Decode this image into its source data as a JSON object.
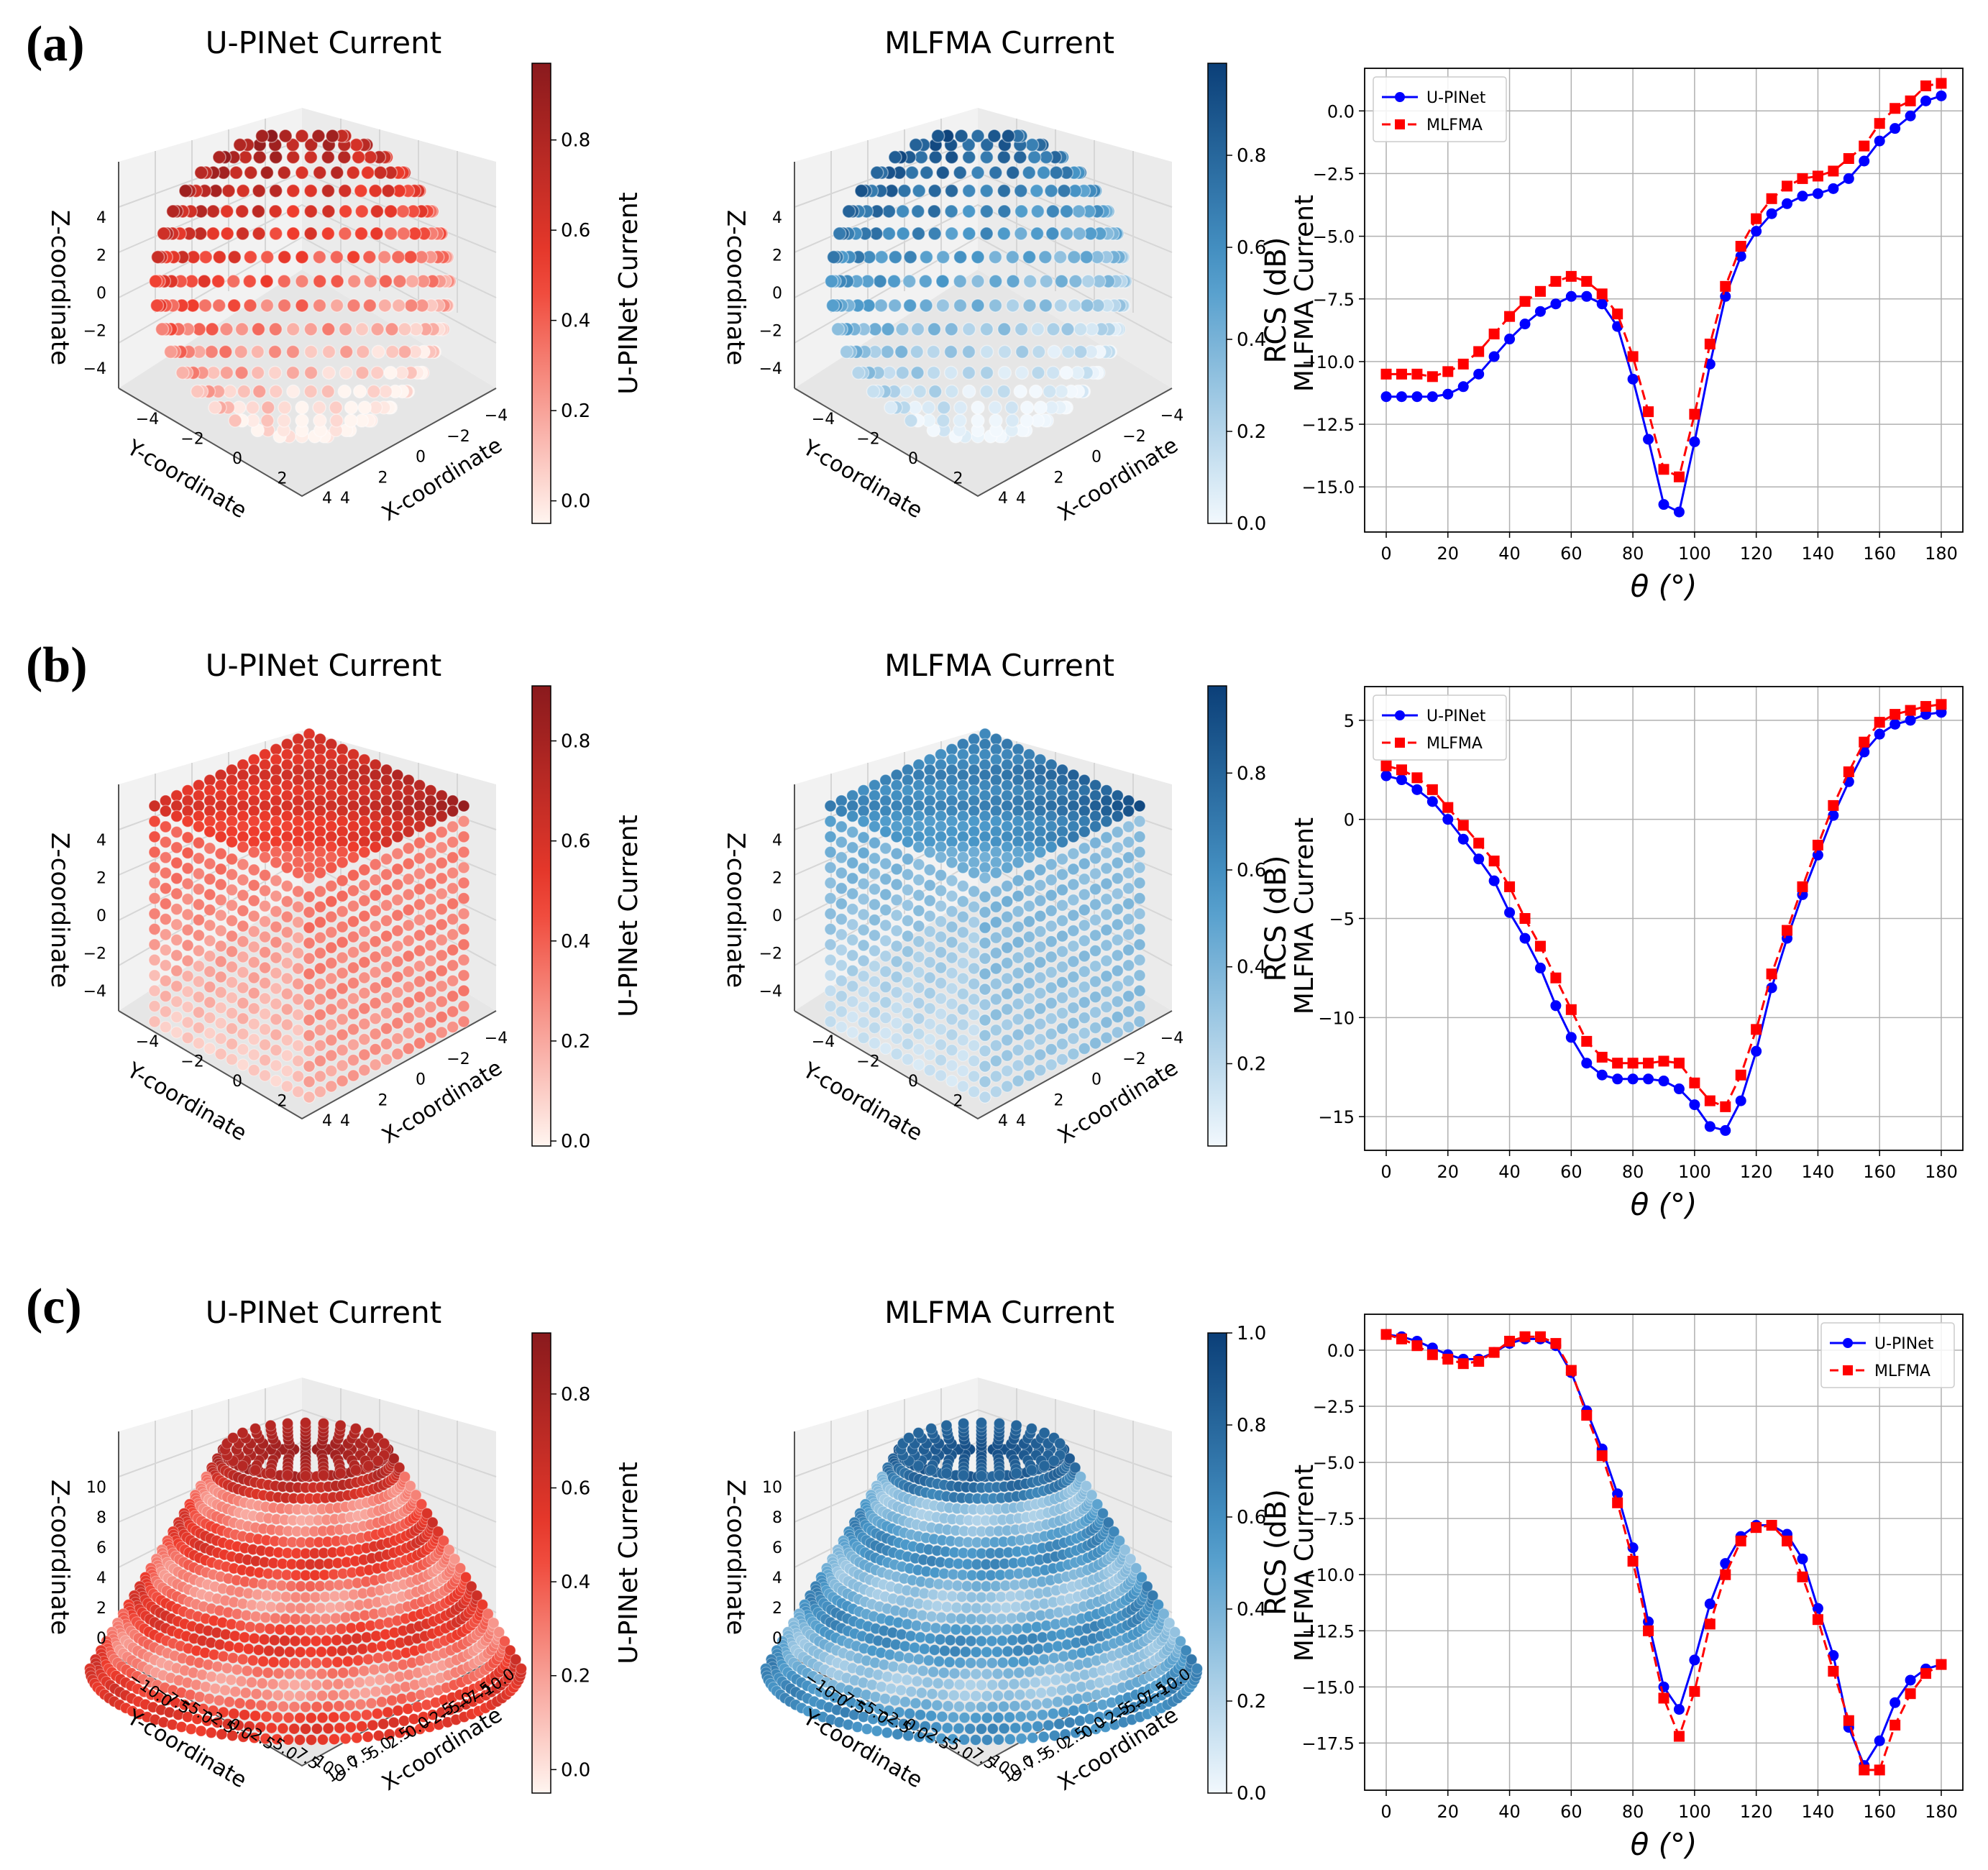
{
  "figure": {
    "row_labels": [
      "(a)",
      "(b)",
      "(c)"
    ],
    "row_shapes": [
      "sphere",
      "cube",
      "frustum"
    ]
  },
  "colors": {
    "upinet_cmap_low": "#fff5f0",
    "upinet_cmap_mid": "#ef3b2c",
    "upinet_cmap_high": "#8a1a1d",
    "mlfma_cmap_low": "#f2f8fd",
    "mlfma_cmap_mid": "#4a98c9",
    "mlfma_cmap_high": "#0b3f78",
    "upinet_line": "#0000ff",
    "mlfma_line": "#ff0000",
    "grid": "#b0b0b0"
  },
  "chart_data": [
    {
      "type": "scatter3d",
      "row": 0,
      "title": "U-PINet Current",
      "colorbar_label": "U-PINet Current",
      "colorbar_range": [
        -0.05,
        0.97
      ],
      "colorbar_ticks": [
        "0.0",
        "0.2",
        "0.4",
        "0.6",
        "0.8"
      ],
      "colorbar_tick_values": [
        0,
        0.2,
        0.4,
        0.6,
        0.8
      ],
      "cmap": "Reds",
      "zlabel": "Z-coordinate",
      "ylabel": "Y-coordinate",
      "xlabel": "X-coordinate",
      "z_ticks": [
        "4",
        "2",
        "0",
        "−2",
        "−4"
      ],
      "y_ticks": [
        "−4",
        "−2",
        "0",
        "2",
        "4"
      ],
      "x_ticks": [
        "−4",
        "−2",
        "0",
        "2",
        "4"
      ]
    },
    {
      "type": "scatter3d",
      "row": 0,
      "title": "MLFMA Current",
      "colorbar_label": "MLFMA Current",
      "colorbar_range": [
        0,
        1.0
      ],
      "colorbar_ticks": [
        "0.0",
        "0.2",
        "0.4",
        "0.6",
        "0.8"
      ],
      "colorbar_tick_values": [
        0,
        0.2,
        0.4,
        0.6,
        0.8
      ],
      "cmap": "Blues",
      "zlabel": "Z-coordinate",
      "ylabel": "Y-coordinate",
      "xlabel": "X-coordinate",
      "z_ticks": [
        "4",
        "2",
        "0",
        "−2",
        "−4"
      ],
      "y_ticks": [
        "−4",
        "−2",
        "0",
        "2",
        "4"
      ],
      "x_ticks": [
        "−4",
        "−2",
        "0",
        "2",
        "4"
      ]
    },
    {
      "type": "line",
      "row": 0,
      "xlabel": "θ (°)",
      "ylabel": "RCS (dB)",
      "xlim": [
        -7,
        187
      ],
      "ylim": [
        -16.8,
        1.7
      ],
      "xticks": [
        0,
        20,
        40,
        60,
        80,
        100,
        120,
        140,
        160,
        180
      ],
      "yticks": [
        0.0,
        -2.5,
        -5.0,
        -7.5,
        -10.0,
        -12.5,
        -15.0
      ],
      "ytick_labels": [
        "0.0",
        "−2.5",
        "−5.0",
        "−7.5",
        "−10.0",
        "−12.5",
        "−15.0"
      ],
      "legend": "top-left",
      "x": [
        0,
        5,
        10,
        15,
        20,
        25,
        30,
        35,
        40,
        45,
        50,
        55,
        60,
        65,
        70,
        75,
        80,
        85,
        90,
        95,
        100,
        105,
        110,
        115,
        120,
        125,
        130,
        135,
        140,
        145,
        150,
        155,
        160,
        165,
        170,
        175,
        180
      ],
      "series": [
        {
          "name": "U-PINet",
          "values": [
            -11.4,
            -11.4,
            -11.4,
            -11.4,
            -11.3,
            -11.0,
            -10.5,
            -9.8,
            -9.1,
            -8.5,
            -8.0,
            -7.7,
            -7.4,
            -7.4,
            -7.7,
            -8.6,
            -10.7,
            -13.1,
            -15.7,
            -16.0,
            -13.2,
            -10.1,
            -7.4,
            -5.8,
            -4.8,
            -4.1,
            -3.7,
            -3.4,
            -3.3,
            -3.1,
            -2.7,
            -2.0,
            -1.2,
            -0.7,
            -0.2,
            0.4,
            0.6
          ]
        },
        {
          "name": "MLFMA",
          "values": [
            -10.5,
            -10.5,
            -10.5,
            -10.6,
            -10.4,
            -10.1,
            -9.6,
            -8.9,
            -8.2,
            -7.6,
            -7.2,
            -6.8,
            -6.6,
            -6.8,
            -7.3,
            -8.1,
            -9.8,
            -12.0,
            -14.3,
            -14.6,
            -12.1,
            -9.3,
            -7.0,
            -5.4,
            -4.3,
            -3.5,
            -3.0,
            -2.7,
            -2.6,
            -2.4,
            -1.9,
            -1.4,
            -0.5,
            0.1,
            0.4,
            1.0,
            1.1
          ]
        }
      ]
    },
    {
      "type": "scatter3d",
      "row": 1,
      "title": "U-PINet Current",
      "colorbar_label": "U-PINet Current",
      "colorbar_range": [
        -0.01,
        0.91
      ],
      "colorbar_ticks": [
        "0.0",
        "0.2",
        "0.4",
        "0.6",
        "0.8"
      ],
      "colorbar_tick_values": [
        0,
        0.2,
        0.4,
        0.6,
        0.8
      ],
      "cmap": "Reds",
      "zlabel": "Z-coordinate",
      "ylabel": "Y-coordinate",
      "xlabel": "X-coordinate",
      "z_ticks": [
        "4",
        "2",
        "0",
        "−2",
        "−4"
      ],
      "y_ticks": [
        "−4",
        "−2",
        "0",
        "2",
        "4"
      ],
      "x_ticks": [
        "−4",
        "−2",
        "0",
        "2",
        "4"
      ]
    },
    {
      "type": "scatter3d",
      "row": 1,
      "title": "MLFMA Current",
      "colorbar_label": "MLFMA Current",
      "colorbar_range": [
        0.03,
        0.98
      ],
      "colorbar_ticks": [
        "0.2",
        "0.4",
        "0.6",
        "0.8"
      ],
      "colorbar_tick_values": [
        0.2,
        0.4,
        0.6,
        0.8
      ],
      "cmap": "Blues",
      "zlabel": "Z-coordinate",
      "ylabel": "Y-coordinate",
      "xlabel": "X-coordinate",
      "z_ticks": [
        "4",
        "2",
        "0",
        "−2",
        "−4"
      ],
      "y_ticks": [
        "−4",
        "−2",
        "0",
        "2",
        "4"
      ],
      "x_ticks": [
        "−4",
        "−2",
        "0",
        "2",
        "4"
      ]
    },
    {
      "type": "line",
      "row": 1,
      "xlabel": "θ (°)",
      "ylabel": "RCS (dB)",
      "xlim": [
        -7,
        187
      ],
      "ylim": [
        -16.7,
        6.7
      ],
      "xticks": [
        0,
        20,
        40,
        60,
        80,
        100,
        120,
        140,
        160,
        180
      ],
      "yticks": [
        5,
        0,
        -5,
        -10,
        -15
      ],
      "ytick_labels": [
        "5",
        "0",
        "−5",
        "−10",
        "−15"
      ],
      "legend": "top-left",
      "x": [
        0,
        5,
        10,
        15,
        20,
        25,
        30,
        35,
        40,
        45,
        50,
        55,
        60,
        65,
        70,
        75,
        80,
        85,
        90,
        95,
        100,
        105,
        110,
        115,
        120,
        125,
        130,
        135,
        140,
        145,
        150,
        155,
        160,
        165,
        170,
        175,
        180
      ],
      "series": [
        {
          "name": "U-PINet",
          "values": [
            2.2,
            2.0,
            1.5,
            0.9,
            0.0,
            -1.0,
            -2.0,
            -3.1,
            -4.7,
            -6.0,
            -7.5,
            -9.4,
            -11.0,
            -12.3,
            -12.9,
            -13.1,
            -13.1,
            -13.1,
            -13.2,
            -13.6,
            -14.4,
            -15.5,
            -15.7,
            -14.2,
            -11.7,
            -8.5,
            -6.0,
            -3.8,
            -1.8,
            0.2,
            1.9,
            3.4,
            4.3,
            4.8,
            5.0,
            5.3,
            5.4
          ]
        },
        {
          "name": "MLFMA",
          "values": [
            2.7,
            2.5,
            2.1,
            1.5,
            0.6,
            -0.3,
            -1.2,
            -2.1,
            -3.4,
            -5.0,
            -6.4,
            -8.0,
            -9.6,
            -11.2,
            -12.0,
            -12.3,
            -12.3,
            -12.3,
            -12.2,
            -12.3,
            -13.3,
            -14.2,
            -14.5,
            -12.9,
            -10.6,
            -7.8,
            -5.6,
            -3.4,
            -1.3,
            0.7,
            2.4,
            3.9,
            4.9,
            5.3,
            5.5,
            5.7,
            5.8
          ]
        }
      ]
    },
    {
      "type": "scatter3d",
      "row": 2,
      "title": "U-PINet Current",
      "colorbar_label": "U-PINet Current",
      "colorbar_range": [
        -0.05,
        0.93
      ],
      "colorbar_ticks": [
        "0.0",
        "0.2",
        "0.4",
        "0.6",
        "0.8"
      ],
      "colorbar_tick_values": [
        0,
        0.2,
        0.4,
        0.6,
        0.8
      ],
      "cmap": "Reds",
      "zlabel": "Z-coordinate",
      "ylabel": "Y-coordinate",
      "xlabel": "X-coordinate",
      "z_ticks": [
        "10",
        "8",
        "6",
        "4",
        "2",
        "0"
      ],
      "y_ticks": [
        "−10.0",
        "−7.5",
        "−5.0",
        "−2.5",
        "0.0",
        "2.5",
        "5.0",
        "7.5",
        "10.0"
      ],
      "x_ticks": [
        "−10.0",
        "−7.5",
        "−5.0",
        "−2.5",
        "0.0",
        "2.5",
        "5.0",
        "7.5",
        "10.0"
      ]
    },
    {
      "type": "scatter3d",
      "row": 2,
      "title": "MLFMA Current",
      "colorbar_label": "MLFMA Current",
      "colorbar_range": [
        0,
        1.0
      ],
      "colorbar_ticks": [
        "0.0",
        "0.2",
        "0.4",
        "0.6",
        "0.8",
        "1.0"
      ],
      "colorbar_tick_values": [
        0,
        0.2,
        0.4,
        0.6,
        0.8,
        1.0
      ],
      "cmap": "Blues",
      "zlabel": "Z-coordinate",
      "ylabel": "Y-coordinate",
      "xlabel": "X-coordinate",
      "z_ticks": [
        "10",
        "8",
        "6",
        "4",
        "2",
        "0"
      ],
      "y_ticks": [
        "−10.0",
        "−7.5",
        "−5.0",
        "−2.5",
        "0.0",
        "2.5",
        "5.0",
        "7.5",
        "10.0"
      ],
      "x_ticks": [
        "−10.0",
        "−7.5",
        "−5.0",
        "−2.5",
        "0.0",
        "2.5",
        "5.0",
        "7.5",
        "10.0"
      ]
    },
    {
      "type": "line",
      "row": 2,
      "xlabel": "θ (°)",
      "ylabel": "RCS (dB)",
      "xlim": [
        -7,
        187
      ],
      "ylim": [
        -19.6,
        1.6
      ],
      "xticks": [
        0,
        20,
        40,
        60,
        80,
        100,
        120,
        140,
        160,
        180
      ],
      "yticks": [
        0.0,
        -2.5,
        -5.0,
        -7.5,
        -10.0,
        -12.5,
        -15.0,
        -17.5
      ],
      "ytick_labels": [
        "0.0",
        "−2.5",
        "−5.0",
        "−7.5",
        "−10.0",
        "−12.5",
        "−15.0",
        "−17.5"
      ],
      "legend": "top-right",
      "x": [
        0,
        5,
        10,
        15,
        20,
        25,
        30,
        35,
        40,
        45,
        50,
        55,
        60,
        65,
        70,
        75,
        80,
        85,
        90,
        95,
        100,
        105,
        110,
        115,
        120,
        125,
        130,
        135,
        140,
        145,
        150,
        155,
        160,
        165,
        170,
        175,
        180
      ],
      "series": [
        {
          "name": "U-PINet",
          "values": [
            0.7,
            0.6,
            0.4,
            0.1,
            -0.2,
            -0.4,
            -0.4,
            -0.1,
            0.3,
            0.5,
            0.5,
            0.2,
            -1.0,
            -2.7,
            -4.4,
            -6.4,
            -8.8,
            -12.1,
            -15.0,
            -16.0,
            -13.8,
            -11.3,
            -9.5,
            -8.3,
            -7.8,
            -7.8,
            -8.2,
            -9.3,
            -11.5,
            -13.6,
            -16.8,
            -18.5,
            -17.4,
            -15.7,
            -14.7,
            -14.2,
            -14.0
          ]
        },
        {
          "name": "MLFMA",
          "values": [
            0.7,
            0.5,
            0.2,
            -0.2,
            -0.4,
            -0.6,
            -0.5,
            -0.1,
            0.4,
            0.6,
            0.6,
            0.3,
            -0.9,
            -2.9,
            -4.7,
            -6.8,
            -9.4,
            -12.5,
            -15.5,
            -17.2,
            -15.2,
            -12.2,
            -10.0,
            -8.5,
            -7.9,
            -7.8,
            -8.5,
            -10.1,
            -12.0,
            -14.3,
            -16.5,
            -18.7,
            -18.7,
            -16.7,
            -15.3,
            -14.4,
            -14.0
          ]
        }
      ]
    }
  ]
}
